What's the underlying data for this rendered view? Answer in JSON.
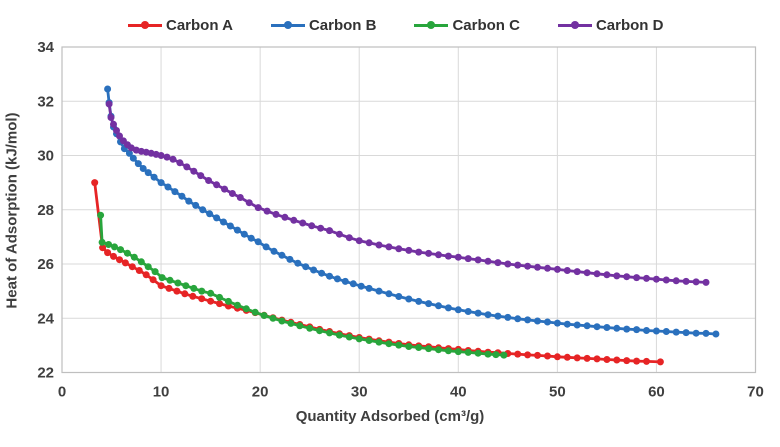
{
  "chart_data": {
    "type": "line",
    "title": "",
    "xlabel": "Quantity Adsorbed (cm³/g)",
    "ylabel": "Heat of Adsorption (kJ/mol)",
    "xlim": [
      0,
      70
    ],
    "ylim": [
      22,
      34
    ],
    "xticks": [
      0,
      10,
      20,
      30,
      40,
      50,
      60,
      70
    ],
    "yticks": [
      22,
      24,
      26,
      28,
      30,
      32,
      34
    ],
    "grid": true,
    "legend_position": "top",
    "grid_color": "#d9d9d9",
    "border_color": "#bfbfbf",
    "marker": "circle",
    "series": [
      {
        "name": "Carbon A",
        "color": "#e62425",
        "points": [
          [
            3.3,
            29.0
          ],
          [
            4.1,
            26.6
          ],
          [
            4.6,
            26.42
          ],
          [
            5.2,
            26.28
          ],
          [
            5.8,
            26.16
          ],
          [
            6.4,
            26.04
          ],
          [
            7.1,
            25.9
          ],
          [
            7.8,
            25.76
          ],
          [
            8.5,
            25.6
          ],
          [
            9.2,
            25.42
          ],
          [
            10,
            25.2
          ],
          [
            10.8,
            25.1
          ],
          [
            11.6,
            25.0
          ],
          [
            12.4,
            24.9
          ],
          [
            13.2,
            24.81
          ],
          [
            14.1,
            24.72
          ],
          [
            15,
            24.63
          ],
          [
            15.9,
            24.54
          ],
          [
            16.8,
            24.45
          ],
          [
            17.7,
            24.37
          ],
          [
            18.6,
            24.29
          ],
          [
            19.5,
            24.21
          ],
          [
            20.4,
            24.11
          ],
          [
            21.3,
            24.02
          ],
          [
            22.2,
            23.93
          ],
          [
            23.1,
            23.85
          ],
          [
            24,
            23.77
          ],
          [
            25,
            23.68
          ],
          [
            26,
            23.59
          ],
          [
            27,
            23.51
          ],
          [
            28,
            23.43
          ],
          [
            29,
            23.36
          ],
          [
            30,
            23.29
          ],
          [
            31,
            23.23
          ],
          [
            32,
            23.17
          ],
          [
            33,
            23.12
          ],
          [
            34,
            23.07
          ],
          [
            35,
            23.02
          ],
          [
            36,
            22.98
          ],
          [
            37,
            22.95
          ],
          [
            38,
            22.91
          ],
          [
            39,
            22.88
          ],
          [
            40,
            22.85
          ],
          [
            41,
            22.81
          ],
          [
            42,
            22.78
          ],
          [
            43,
            22.75
          ],
          [
            44,
            22.73
          ],
          [
            45,
            22.7
          ],
          [
            46,
            22.68
          ],
          [
            47,
            22.65
          ],
          [
            48,
            22.63
          ],
          [
            49,
            22.61
          ],
          [
            50,
            22.58
          ],
          [
            51,
            22.56
          ],
          [
            52,
            22.54
          ],
          [
            53,
            22.52
          ],
          [
            54,
            22.5
          ],
          [
            55,
            22.48
          ],
          [
            56,
            22.46
          ],
          [
            57,
            22.44
          ],
          [
            58,
            22.42
          ],
          [
            59,
            22.41
          ],
          [
            60.4,
            22.39
          ]
        ]
      },
      {
        "name": "Carbon B",
        "color": "#2a70bd",
        "points": [
          [
            4.6,
            32.45
          ],
          [
            4.75,
            31.95
          ],
          [
            4.95,
            31.45
          ],
          [
            5.2,
            31.05
          ],
          [
            5.5,
            30.8
          ],
          [
            5.9,
            30.5
          ],
          [
            6.3,
            30.25
          ],
          [
            6.8,
            30.08
          ],
          [
            7.2,
            29.9
          ],
          [
            7.7,
            29.7
          ],
          [
            8.2,
            29.52
          ],
          [
            8.7,
            29.37
          ],
          [
            9.3,
            29.2
          ],
          [
            10,
            29.0
          ],
          [
            10.7,
            28.84
          ],
          [
            11.4,
            28.67
          ],
          [
            12.1,
            28.5
          ],
          [
            12.8,
            28.32
          ],
          [
            13.5,
            28.16
          ],
          [
            14.2,
            28.0
          ],
          [
            14.9,
            27.85
          ],
          [
            15.6,
            27.7
          ],
          [
            16.3,
            27.55
          ],
          [
            17,
            27.4
          ],
          [
            17.7,
            27.25
          ],
          [
            18.4,
            27.1
          ],
          [
            19.1,
            26.95
          ],
          [
            19.8,
            26.82
          ],
          [
            20.6,
            26.63
          ],
          [
            21.4,
            26.47
          ],
          [
            22.2,
            26.32
          ],
          [
            23,
            26.17
          ],
          [
            23.8,
            26.03
          ],
          [
            24.6,
            25.9
          ],
          [
            25.4,
            25.78
          ],
          [
            26.2,
            25.66
          ],
          [
            27,
            25.55
          ],
          [
            27.8,
            25.45
          ],
          [
            28.6,
            25.36
          ],
          [
            29.4,
            25.27
          ],
          [
            30.2,
            25.18
          ],
          [
            31,
            25.1
          ],
          [
            32,
            25.0
          ],
          [
            33,
            24.9
          ],
          [
            34,
            24.8
          ],
          [
            35,
            24.71
          ],
          [
            36,
            24.62
          ],
          [
            37,
            24.54
          ],
          [
            38,
            24.46
          ],
          [
            39,
            24.38
          ],
          [
            40,
            24.31
          ],
          [
            41,
            24.25
          ],
          [
            42,
            24.19
          ],
          [
            43,
            24.13
          ],
          [
            44,
            24.08
          ],
          [
            45,
            24.03
          ],
          [
            46,
            23.98
          ],
          [
            47,
            23.94
          ],
          [
            48,
            23.9
          ],
          [
            49,
            23.86
          ],
          [
            50,
            23.82
          ],
          [
            51,
            23.78
          ],
          [
            52,
            23.75
          ],
          [
            53,
            23.72
          ],
          [
            54,
            23.69
          ],
          [
            55,
            23.66
          ],
          [
            56,
            23.63
          ],
          [
            57,
            23.6
          ],
          [
            58,
            23.58
          ],
          [
            59,
            23.55
          ],
          [
            60,
            23.53
          ],
          [
            61,
            23.51
          ],
          [
            62,
            23.49
          ],
          [
            63,
            23.47
          ],
          [
            64,
            23.45
          ],
          [
            65,
            23.44
          ],
          [
            66,
            23.42
          ]
        ]
      },
      {
        "name": "Carbon C",
        "color": "#28a53c",
        "points": [
          [
            3.9,
            27.8
          ],
          [
            4.05,
            26.8
          ],
          [
            4.7,
            26.72
          ],
          [
            5.3,
            26.63
          ],
          [
            5.9,
            26.53
          ],
          [
            6.6,
            26.4
          ],
          [
            7.3,
            26.25
          ],
          [
            8,
            26.08
          ],
          [
            8.7,
            25.9
          ],
          [
            9.4,
            25.72
          ],
          [
            10.1,
            25.5
          ],
          [
            10.9,
            25.4
          ],
          [
            11.7,
            25.3
          ],
          [
            12.5,
            25.2
          ],
          [
            13.3,
            25.1
          ],
          [
            14.1,
            25.0
          ],
          [
            15,
            24.92
          ],
          [
            15.9,
            24.77
          ],
          [
            16.8,
            24.62
          ],
          [
            17.7,
            24.48
          ],
          [
            18.6,
            24.35
          ],
          [
            19.5,
            24.22
          ],
          [
            20.4,
            24.1
          ],
          [
            21.3,
            24.0
          ],
          [
            22.2,
            23.9
          ],
          [
            23.1,
            23.81
          ],
          [
            24,
            23.72
          ],
          [
            25,
            23.63
          ],
          [
            26,
            23.54
          ],
          [
            27,
            23.46
          ],
          [
            28,
            23.38
          ],
          [
            29,
            23.31
          ],
          [
            30,
            23.24
          ],
          [
            31,
            23.18
          ],
          [
            32,
            23.12
          ],
          [
            33,
            23.06
          ],
          [
            34,
            23.01
          ],
          [
            35,
            22.96
          ],
          [
            36,
            22.92
          ],
          [
            37,
            22.88
          ],
          [
            38,
            22.84
          ],
          [
            39,
            22.8
          ],
          [
            40,
            22.77
          ],
          [
            41,
            22.74
          ],
          [
            42,
            22.71
          ],
          [
            43,
            22.68
          ],
          [
            43.8,
            22.66
          ],
          [
            44.6,
            22.64
          ]
        ]
      },
      {
        "name": "Carbon D",
        "color": "#7331a1",
        "points": [
          [
            4.75,
            31.9
          ],
          [
            4.95,
            31.4
          ],
          [
            5.2,
            31.15
          ],
          [
            5.5,
            30.92
          ],
          [
            5.8,
            30.72
          ],
          [
            6.2,
            30.54
          ],
          [
            6.6,
            30.4
          ],
          [
            7,
            30.28
          ],
          [
            7.5,
            30.2
          ],
          [
            8,
            30.15
          ],
          [
            8.5,
            30.12
          ],
          [
            9,
            30.08
          ],
          [
            9.5,
            30.04
          ],
          [
            10,
            30.0
          ],
          [
            10.6,
            29.94
          ],
          [
            11.2,
            29.86
          ],
          [
            11.9,
            29.73
          ],
          [
            12.6,
            29.58
          ],
          [
            13.3,
            29.42
          ],
          [
            14,
            29.26
          ],
          [
            14.8,
            29.08
          ],
          [
            15.6,
            28.92
          ],
          [
            16.4,
            28.76
          ],
          [
            17.2,
            28.6
          ],
          [
            18,
            28.45
          ],
          [
            18.9,
            28.26
          ],
          [
            19.8,
            28.08
          ],
          [
            20.7,
            27.95
          ],
          [
            21.6,
            27.83
          ],
          [
            22.5,
            27.72
          ],
          [
            23.4,
            27.61
          ],
          [
            24.3,
            27.51
          ],
          [
            25.2,
            27.41
          ],
          [
            26.1,
            27.32
          ],
          [
            27,
            27.23
          ],
          [
            28,
            27.1
          ],
          [
            29,
            26.97
          ],
          [
            30,
            26.86
          ],
          [
            31,
            26.78
          ],
          [
            32,
            26.7
          ],
          [
            33,
            26.63
          ],
          [
            34,
            26.56
          ],
          [
            35,
            26.5
          ],
          [
            36,
            26.44
          ],
          [
            37,
            26.39
          ],
          [
            38,
            26.34
          ],
          [
            39,
            26.29
          ],
          [
            40,
            26.25
          ],
          [
            41,
            26.2
          ],
          [
            42,
            26.15
          ],
          [
            43,
            26.1
          ],
          [
            44,
            26.05
          ],
          [
            45,
            26.0
          ],
          [
            46,
            25.96
          ],
          [
            47,
            25.92
          ],
          [
            48,
            25.88
          ],
          [
            49,
            25.84
          ],
          [
            50,
            25.8
          ],
          [
            51,
            25.76
          ],
          [
            52,
            25.72
          ],
          [
            53,
            25.68
          ],
          [
            54,
            25.64
          ],
          [
            55,
            25.6
          ],
          [
            56,
            25.56
          ],
          [
            57,
            25.53
          ],
          [
            58,
            25.5
          ],
          [
            59,
            25.47
          ],
          [
            60,
            25.44
          ],
          [
            61,
            25.41
          ],
          [
            62,
            25.38
          ],
          [
            63,
            25.36
          ],
          [
            64,
            25.34
          ],
          [
            65,
            25.32
          ]
        ]
      }
    ]
  }
}
